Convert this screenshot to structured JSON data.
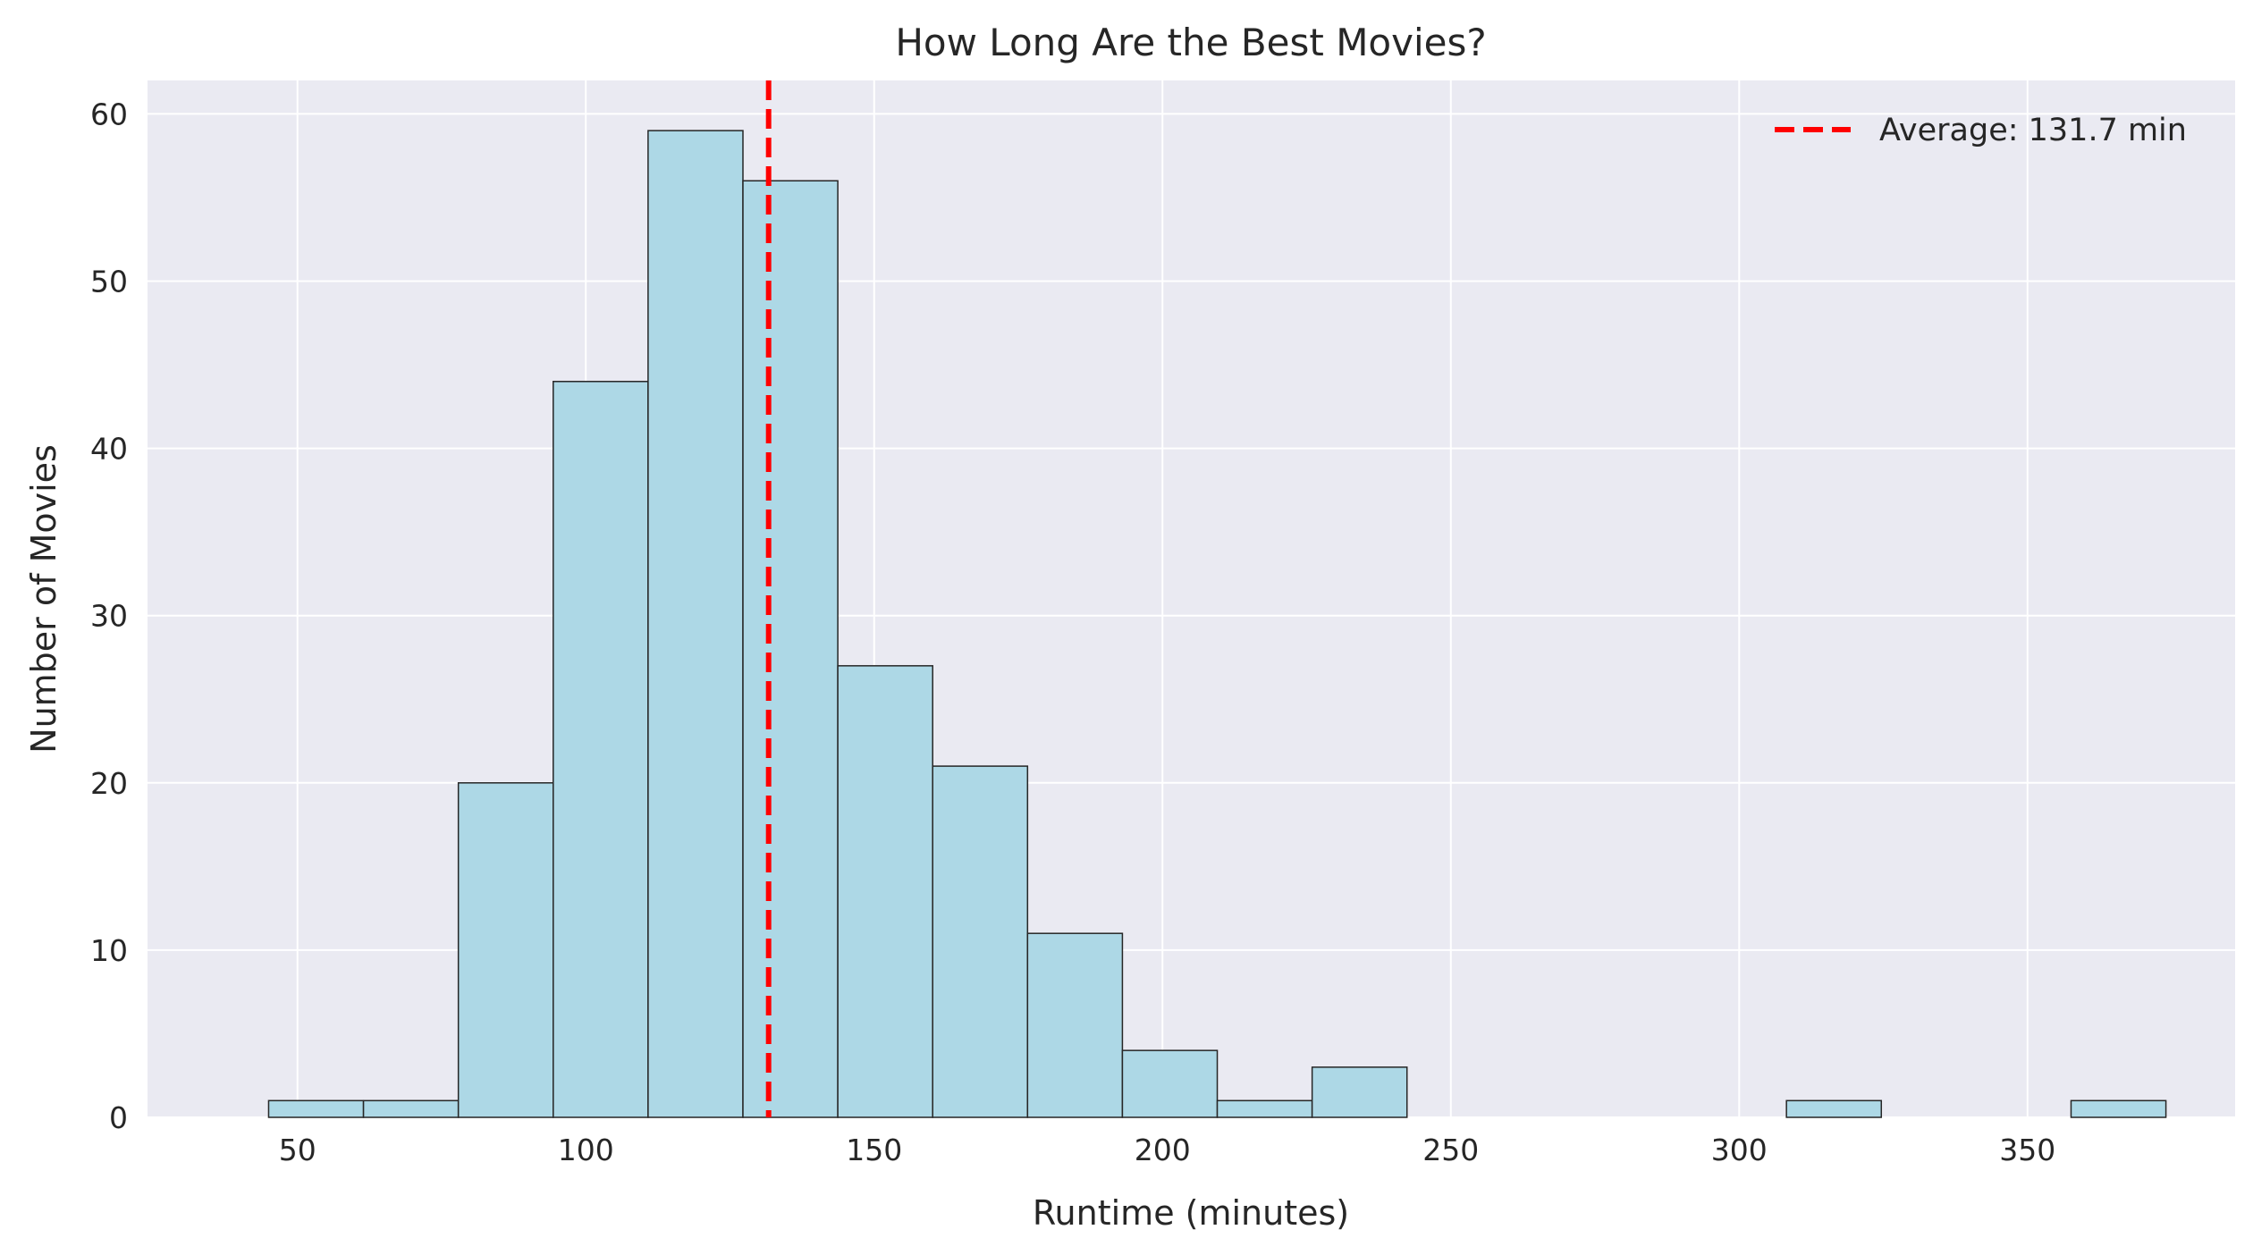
{
  "chart_data": {
    "type": "bar",
    "title": "How Long Are the Best Movies?",
    "xlabel": "Runtime (minutes)",
    "ylabel": "Number of Movies",
    "xlim": [
      24,
      386
    ],
    "ylim": [
      0,
      62
    ],
    "xticks": [
      50,
      100,
      150,
      200,
      250,
      300,
      350
    ],
    "yticks": [
      0,
      10,
      20,
      30,
      40,
      50,
      60
    ],
    "bin_edges": [
      45,
      61.45,
      77.9,
      94.35,
      110.8,
      127.25,
      143.7,
      160.15,
      176.6,
      193.05,
      209.5,
      225.95,
      242.4,
      258.85,
      275.3,
      291.75,
      308.2,
      324.65,
      341.1,
      357.55,
      374
    ],
    "counts": [
      1,
      1,
      20,
      44,
      59,
      56,
      27,
      21,
      11,
      4,
      1,
      3,
      0,
      0,
      0,
      0,
      1,
      0,
      0,
      1
    ],
    "mean_line": {
      "value": 131.7,
      "label": "Average: 131.7 min",
      "color": "#ff0000",
      "style": "dashed"
    },
    "bar_color": "#add8e6",
    "edge_color": "#262626",
    "background": "#eaeaf2",
    "grid": true,
    "legend_position": "top-right"
  }
}
